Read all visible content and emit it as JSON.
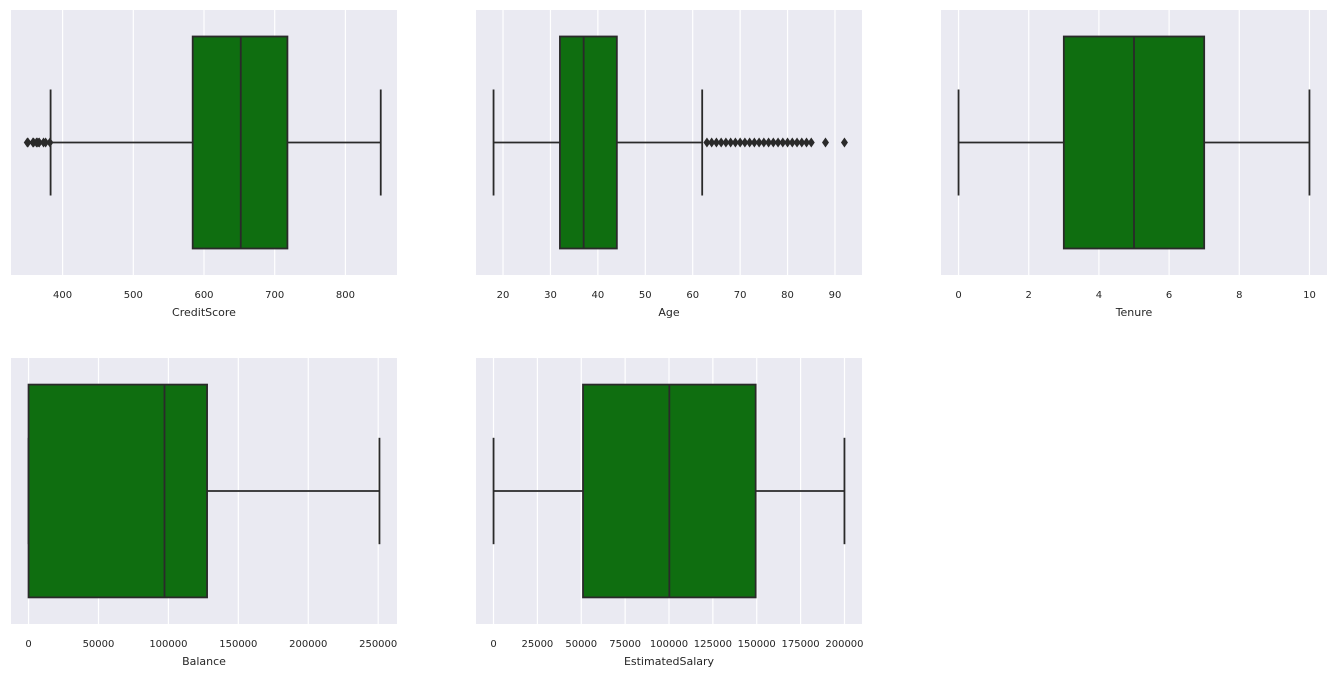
{
  "colors": {
    "background": "#eaeaf2",
    "box_fill": "#0f6e10",
    "line": "#2a2a2a",
    "grid": "#ffffff"
  },
  "chart_data": [
    {
      "type": "box",
      "xlabel": "CreditScore",
      "xlim": [
        327,
        873
      ],
      "ticks": [
        400,
        500,
        600,
        700,
        800
      ],
      "tick_labels": [
        "400",
        "500",
        "600",
        "700",
        "800"
      ],
      "whisker_low": 383,
      "q1": 584,
      "median": 652,
      "q3": 718,
      "whisker_high": 850,
      "outliers": [
        350,
        351,
        358,
        359,
        363,
        365,
        367,
        373,
        376,
        382
      ]
    },
    {
      "type": "box",
      "xlabel": "Age",
      "xlim": [
        14.3,
        95.7
      ],
      "ticks": [
        20,
        30,
        40,
        50,
        60,
        70,
        80,
        90
      ],
      "tick_labels": [
        "20",
        "30",
        "40",
        "50",
        "60",
        "70",
        "80",
        "90"
      ],
      "whisker_low": 18,
      "q1": 32,
      "median": 37,
      "q3": 44,
      "whisker_high": 62,
      "outliers": [
        63,
        64,
        65,
        66,
        67,
        68,
        69,
        70,
        71,
        72,
        73,
        74,
        75,
        76,
        77,
        78,
        79,
        80,
        81,
        82,
        83,
        84,
        85,
        88,
        92
      ]
    },
    {
      "type": "box",
      "xlabel": "Tenure",
      "xlim": [
        -0.5,
        10.5
      ],
      "ticks": [
        0,
        2,
        4,
        6,
        8,
        10
      ],
      "tick_labels": [
        "0",
        "2",
        "4",
        "6",
        "8",
        "10"
      ],
      "whisker_low": 0,
      "q1": 3,
      "median": 5,
      "q3": 7,
      "whisker_high": 10,
      "outliers": []
    },
    {
      "type": "box",
      "xlabel": "Balance",
      "xlim": [
        -12545,
        263443
      ],
      "ticks": [
        0,
        50000,
        100000,
        150000,
        200000,
        250000
      ],
      "tick_labels": [
        "0",
        "50000",
        "100000",
        "150000",
        "200000",
        "250000"
      ],
      "whisker_low": 0,
      "q1": 0,
      "median": 97199,
      "q3": 127644,
      "whisker_high": 250898,
      "outliers": []
    },
    {
      "type": "box",
      "xlabel": "EstimatedSalary",
      "xlim": [
        -9988,
        209991
      ],
      "ticks": [
        0,
        25000,
        50000,
        75000,
        100000,
        125000,
        150000,
        175000,
        200000
      ],
      "tick_labels": [
        "0",
        "25000",
        "50000",
        "75000",
        "100000",
        "125000",
        "150000",
        "175000",
        "200000"
      ],
      "whisker_low": 12,
      "q1": 51002,
      "median": 100194,
      "q3": 149388,
      "whisker_high": 199992,
      "outliers": []
    }
  ]
}
